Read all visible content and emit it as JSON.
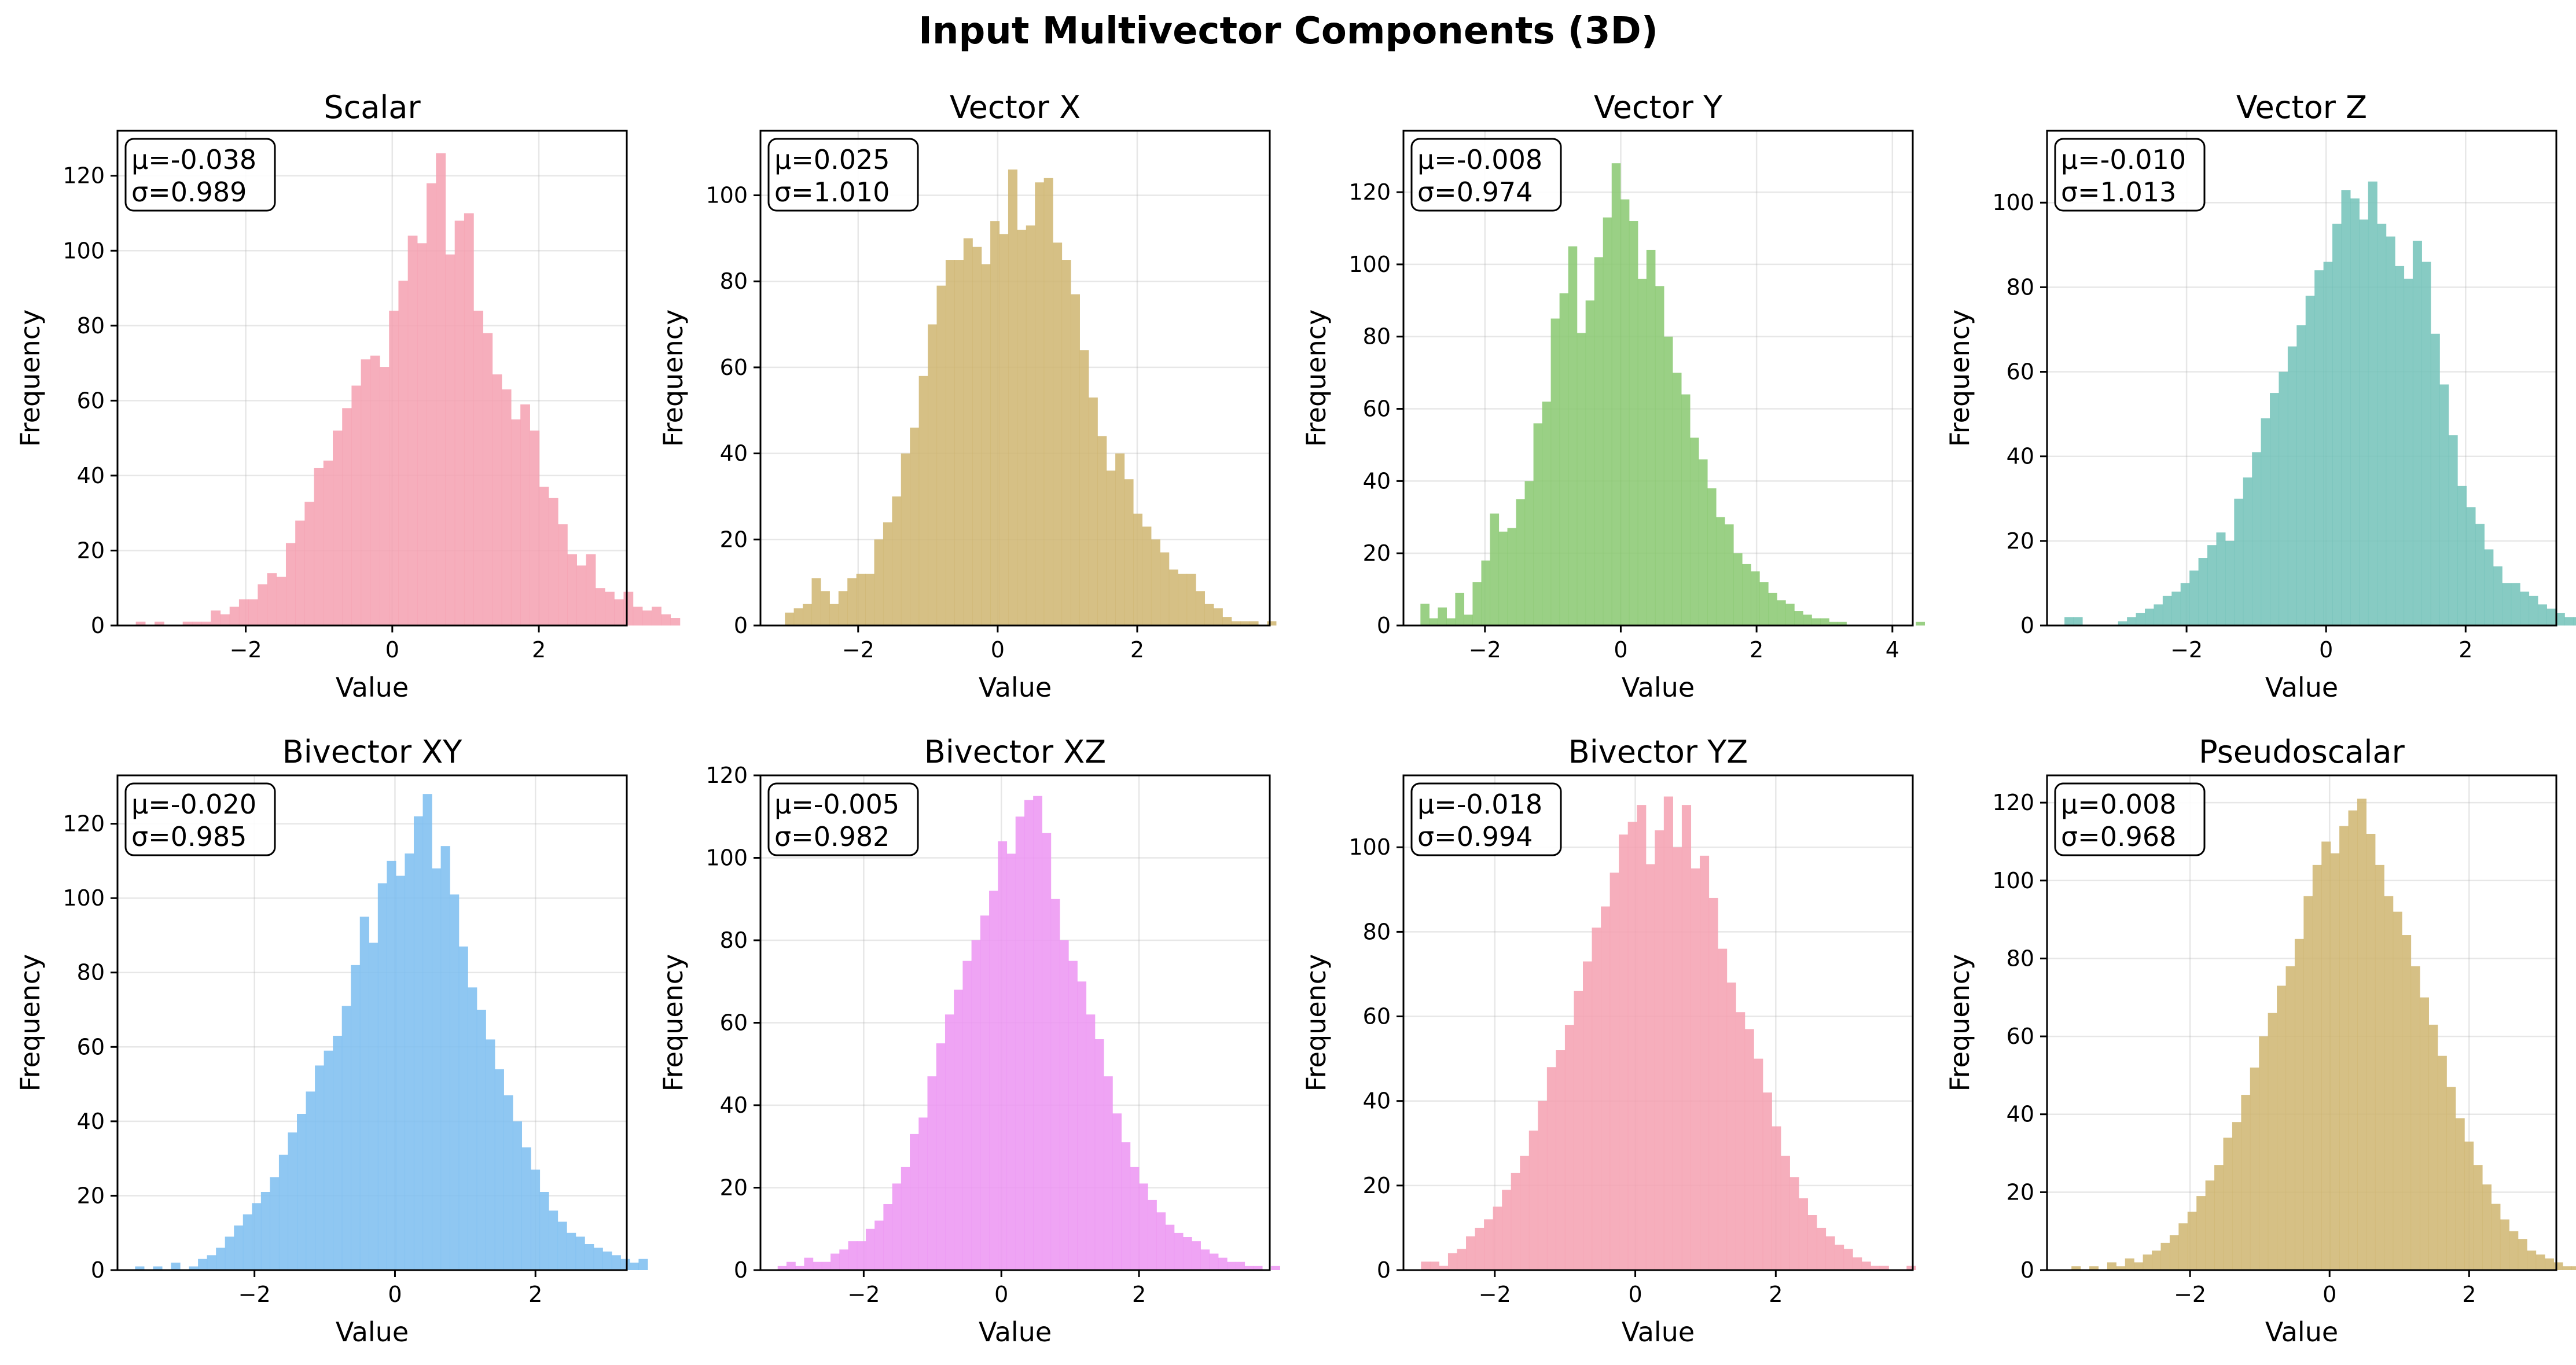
{
  "figure": {
    "title": "Input Multivector Components (3D)"
  },
  "chart_data": [
    {
      "type": "bar",
      "title": "Scalar",
      "xlabel": "Value",
      "ylabel": "Frequency",
      "color": "#f4a0b0",
      "stats": {
        "mu": "μ=-0.038",
        "sigma": "σ=0.989"
      },
      "xlim": [
        -3.75,
        3.2
      ],
      "ylim": [
        0,
        132
      ],
      "xticks": [
        -2,
        0,
        2
      ],
      "xtick_labels": [
        "−2",
        "0",
        "2"
      ],
      "yticks": [
        0,
        20,
        40,
        60,
        80,
        100,
        120
      ],
      "ytick_labels": [
        "0",
        "20",
        "40",
        "60",
        "80",
        "100",
        "120"
      ],
      "bins": {
        "start": -3.5,
        "width": 0.128
      },
      "values": [
        1,
        0,
        1,
        0,
        0,
        1,
        1,
        1,
        4,
        3,
        5,
        7,
        7,
        11,
        14,
        13,
        22,
        28,
        33,
        42,
        44,
        52,
        58,
        64,
        71,
        72,
        69,
        84,
        92,
        104,
        102,
        118,
        126,
        99,
        108,
        110,
        84,
        78,
        67,
        63,
        55,
        59,
        52,
        37,
        34,
        27,
        19,
        16,
        19,
        10,
        9,
        7,
        9,
        5,
        4,
        5,
        3,
        2
      ]
    },
    {
      "type": "bar",
      "title": "Vector X",
      "xlabel": "Value",
      "ylabel": "Frequency",
      "color": "#cfb570",
      "stats": {
        "mu": "μ=0.025",
        "sigma": "σ=1.010"
      },
      "xlim": [
        -3.4,
        3.9
      ],
      "ylim": [
        0,
        115
      ],
      "xticks": [
        -2,
        0,
        2
      ],
      "xtick_labels": [
        "−2",
        "0",
        "2"
      ],
      "yticks": [
        0,
        20,
        40,
        60,
        80,
        100
      ],
      "ytick_labels": [
        "0",
        "20",
        "40",
        "60",
        "80",
        "100"
      ],
      "bins": {
        "start": -3.05,
        "width": 0.128
      },
      "values": [
        3,
        4,
        5,
        11,
        8,
        5,
        8,
        11,
        12,
        12,
        20,
        24,
        30,
        40,
        46,
        58,
        70,
        79,
        85,
        85,
        90,
        88,
        84,
        94,
        91,
        106,
        92,
        93,
        103,
        104,
        89,
        85,
        77,
        64,
        53,
        44,
        36,
        40,
        34,
        26,
        23,
        20,
        17,
        13,
        12,
        12,
        8,
        5,
        4,
        2,
        1,
        1,
        1,
        0,
        1,
        0
      ]
    },
    {
      "type": "bar",
      "title": "Vector Y",
      "xlabel": "Value",
      "ylabel": "Frequency",
      "color": "#88c870",
      "stats": {
        "mu": "μ=-0.008",
        "sigma": "σ=0.974"
      },
      "xlim": [
        -3.2,
        4.3
      ],
      "ylim": [
        0,
        137
      ],
      "xticks": [
        -2,
        0,
        2,
        4
      ],
      "xtick_labels": [
        "−2",
        "0",
        "2",
        "4"
      ],
      "yticks": [
        0,
        20,
        40,
        60,
        80,
        100,
        120
      ],
      "ytick_labels": [
        "0",
        "20",
        "40",
        "60",
        "80",
        "100",
        "120"
      ],
      "bins": {
        "start": -2.95,
        "width": 0.128
      },
      "values": [
        6,
        2,
        5,
        2,
        9,
        3,
        12,
        18,
        31,
        26,
        27,
        35,
        40,
        56,
        62,
        85,
        92,
        105,
        81,
        90,
        102,
        113,
        128,
        118,
        112,
        96,
        104,
        94,
        80,
        70,
        64,
        52,
        46,
        38,
        30,
        28,
        20,
        17,
        15,
        12,
        9,
        7,
        6,
        4,
        3,
        2,
        2,
        1,
        1,
        0,
        0,
        0,
        0,
        0,
        0,
        0,
        0,
        1
      ]
    },
    {
      "type": "bar",
      "title": "Vector Z",
      "xlabel": "Value",
      "ylabel": "Frequency",
      "color": "#72c2b8",
      "stats": {
        "mu": "μ=-0.010",
        "sigma": "σ=1.013"
      },
      "xlim": [
        -4.0,
        3.3
      ],
      "ylim": [
        0,
        117
      ],
      "xticks": [
        -2,
        0,
        2
      ],
      "xtick_labels": [
        "−2",
        "0",
        "2"
      ],
      "yticks": [
        0,
        20,
        40,
        60,
        80,
        100
      ],
      "ytick_labels": [
        "0",
        "20",
        "40",
        "60",
        "80",
        "100"
      ],
      "bins": {
        "start": -3.75,
        "width": 0.128
      },
      "values": [
        2,
        2,
        0,
        0,
        0,
        0,
        1,
        2,
        3,
        4,
        5,
        7,
        8,
        10,
        13,
        16,
        19,
        22,
        20,
        30,
        35,
        41,
        49,
        55,
        60,
        66,
        71,
        78,
        84,
        86,
        95,
        103,
        101,
        96,
        105,
        95,
        92,
        85,
        82,
        91,
        86,
        69,
        57,
        45,
        33,
        28,
        24,
        18,
        14,
        10,
        10,
        8,
        7,
        5,
        4,
        3,
        2,
        2
      ]
    },
    {
      "type": "bar",
      "title": "Bivector XY",
      "xlabel": "Value",
      "ylabel": "Frequency",
      "color": "#7bbdf0",
      "stats": {
        "mu": "μ=-0.020",
        "sigma": "σ=0.985"
      },
      "xlim": [
        -3.95,
        3.3
      ],
      "ylim": [
        0,
        133
      ],
      "xticks": [
        -2,
        0,
        2
      ],
      "xtick_labels": [
        "−2",
        "0",
        "2"
      ],
      "yticks": [
        0,
        20,
        40,
        60,
        80,
        100,
        120
      ],
      "ytick_labels": [
        "0",
        "20",
        "40",
        "60",
        "80",
        "100",
        "120"
      ],
      "bins": {
        "start": -3.7,
        "width": 0.128
      },
      "values": [
        1,
        0,
        1,
        0,
        2,
        0,
        1,
        3,
        4,
        6,
        9,
        12,
        15,
        18,
        21,
        25,
        31,
        37,
        42,
        48,
        55,
        59,
        63,
        71,
        82,
        95,
        88,
        104,
        110,
        106,
        112,
        122,
        128,
        108,
        114,
        101,
        87,
        76,
        70,
        62,
        54,
        47,
        40,
        33,
        27,
        21,
        16,
        13,
        10,
        9,
        7,
        6,
        5,
        4,
        3,
        2,
        3
      ]
    },
    {
      "type": "bar",
      "title": "Bivector XZ",
      "xlabel": "Value",
      "ylabel": "Frequency",
      "color": "#ec94f2",
      "stats": {
        "mu": "μ=-0.005",
        "sigma": "σ=0.982"
      },
      "xlim": [
        -3.5,
        3.9
      ],
      "ylim": [
        0,
        120
      ],
      "xticks": [
        -2,
        0,
        2
      ],
      "xtick_labels": [
        "−2",
        "0",
        "2"
      ],
      "yticks": [
        0,
        20,
        40,
        60,
        80,
        100,
        120
      ],
      "ytick_labels": [
        "0",
        "20",
        "40",
        "60",
        "80",
        "100",
        "120"
      ],
      "bins": {
        "start": -3.25,
        "width": 0.128
      },
      "values": [
        1,
        2,
        1,
        3,
        2,
        2,
        4,
        5,
        7,
        7,
        10,
        12,
        16,
        21,
        25,
        33,
        37,
        47,
        55,
        62,
        68,
        75,
        80,
        86,
        92,
        104,
        101,
        110,
        114,
        115,
        106,
        90,
        80,
        75,
        70,
        62,
        56,
        47,
        38,
        31,
        25,
        21,
        17,
        14,
        11,
        9,
        8,
        7,
        5,
        4,
        3,
        2,
        2,
        1,
        1,
        0,
        1
      ]
    },
    {
      "type": "bar",
      "title": "Bivector YZ",
      "xlabel": "Value",
      "ylabel": "Frequency",
      "color": "#f4a0b0",
      "stats": {
        "mu": "μ=-0.018",
        "sigma": "σ=0.994"
      },
      "xlim": [
        -3.3,
        3.95
      ],
      "ylim": [
        0,
        117
      ],
      "xticks": [
        -2,
        0,
        2
      ],
      "xtick_labels": [
        "−2",
        "0",
        "2"
      ],
      "yticks": [
        0,
        20,
        40,
        60,
        80,
        100
      ],
      "ytick_labels": [
        "0",
        "20",
        "40",
        "60",
        "80",
        "100"
      ],
      "bins": {
        "start": -3.05,
        "width": 0.128
      },
      "values": [
        2,
        2,
        1,
        4,
        5,
        8,
        10,
        12,
        15,
        19,
        23,
        27,
        33,
        40,
        48,
        52,
        58,
        66,
        73,
        81,
        86,
        94,
        103,
        106,
        110,
        96,
        104,
        112,
        100,
        110,
        95,
        98,
        88,
        76,
        68,
        61,
        57,
        50,
        42,
        34,
        27,
        22,
        17,
        13,
        10,
        8,
        6,
        5,
        3,
        2,
        1,
        1,
        0,
        0,
        1
      ]
    },
    {
      "type": "bar",
      "title": "Pseudoscalar",
      "xlabel": "Value",
      "ylabel": "Frequency",
      "color": "#cfb570",
      "stats": {
        "mu": "μ=0.008",
        "sigma": "σ=0.968"
      },
      "xlim": [
        -4.05,
        3.25
      ],
      "ylim": [
        0,
        127
      ],
      "xticks": [
        -2,
        0,
        2
      ],
      "xtick_labels": [
        "−2",
        "0",
        "2"
      ],
      "yticks": [
        0,
        20,
        40,
        60,
        80,
        100,
        120
      ],
      "ytick_labels": [
        "0",
        "20",
        "40",
        "60",
        "80",
        "100",
        "120"
      ],
      "bins": {
        "start": -3.7,
        "width": 0.128
      },
      "values": [
        1,
        0,
        1,
        0,
        2,
        1,
        3,
        2,
        4,
        5,
        7,
        9,
        12,
        15,
        19,
        23,
        27,
        34,
        38,
        45,
        52,
        60,
        66,
        73,
        78,
        85,
        96,
        104,
        110,
        107,
        114,
        118,
        121,
        112,
        104,
        96,
        92,
        86,
        78,
        70,
        63,
        55,
        47,
        39,
        33,
        27,
        22,
        17,
        13,
        10,
        8,
        5,
        4,
        3,
        2,
        1,
        1,
        0
      ]
    }
  ]
}
